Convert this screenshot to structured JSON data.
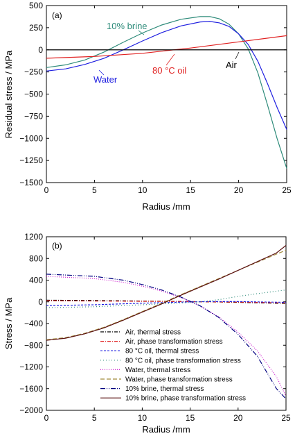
{
  "chart_data": [
    {
      "type": "line",
      "panel_label": "(a)",
      "xlabel": "Radius /mm",
      "ylabel": "Residual stress / MPa",
      "xlim": [
        0,
        25
      ],
      "ylim": [
        -1500,
        500
      ],
      "xticks": [
        "0",
        "5",
        "10",
        "15",
        "20",
        "25"
      ],
      "yticks": [
        "500",
        "250",
        "0",
        "−250",
        "−500",
        "−750",
        "−1000",
        "−1250",
        "−1500"
      ],
      "zero_line": true,
      "series": [
        {
          "name": "10% brine",
          "color": "#2e8b7a",
          "x": [
            0,
            2,
            4,
            6,
            8,
            10,
            12,
            14,
            16,
            17,
            18,
            19,
            20,
            21,
            22,
            23,
            24,
            25
          ],
          "y": [
            -200,
            -170,
            -115,
            -25,
            85,
            190,
            280,
            345,
            375,
            375,
            350,
            290,
            180,
            10,
            -260,
            -620,
            -1000,
            -1340
          ]
        },
        {
          "name": "Water",
          "color": "#1f1fe0",
          "x": [
            0,
            2,
            4,
            6,
            8,
            10,
            12,
            14,
            16,
            17,
            18,
            19,
            20,
            21,
            22,
            23,
            24,
            25
          ],
          "y": [
            -240,
            -215,
            -165,
            -95,
            0,
            100,
            195,
            270,
            315,
            320,
            305,
            265,
            180,
            60,
            -130,
            -380,
            -650,
            -900
          ]
        },
        {
          "name": "80 °C oil",
          "color": "#e02020",
          "x": [
            0,
            5,
            10,
            12,
            15,
            20,
            25
          ],
          "y": [
            -95,
            -75,
            -40,
            -15,
            20,
            90,
            160
          ]
        },
        {
          "name": "Air",
          "color": "#000000",
          "x": [
            0,
            25
          ],
          "y": [
            0,
            0
          ]
        }
      ],
      "annotations": [
        {
          "text": "10% brine",
          "color": "#2e8b7a"
        },
        {
          "text": "Water",
          "color": "#1f1fe0"
        },
        {
          "text": "80 °C oil",
          "color": "#e02020"
        },
        {
          "text": "Air",
          "color": "#000000"
        }
      ]
    },
    {
      "type": "line",
      "panel_label": "(b)",
      "xlabel": "Radius /mm",
      "ylabel": "Stress / MPa",
      "xlim": [
        0,
        25
      ],
      "ylim": [
        -2000,
        1200
      ],
      "xticks": [
        "0",
        "5",
        "10",
        "15",
        "20",
        "25"
      ],
      "yticks": [
        "1200",
        "800",
        "400",
        "0",
        "−400",
        "−800",
        "−1200",
        "−1600",
        "−2000"
      ],
      "legend_position": "bottom-right",
      "series": [
        {
          "name": "Air, thermal stress",
          "color": "#000000",
          "dash": "5,2,1,2",
          "x": [
            0,
            5,
            10,
            15,
            17,
            20,
            25
          ],
          "y": [
            30,
            25,
            15,
            5,
            0,
            -10,
            -30
          ]
        },
        {
          "name": "Air, phase transformation stress",
          "color": "#e02020",
          "dash": "5,2,1,2",
          "x": [
            0,
            5,
            10,
            15,
            17,
            20,
            25
          ],
          "y": [
            20,
            15,
            10,
            3,
            0,
            -5,
            -20
          ]
        },
        {
          "name": "80 °C oil, thermal stress",
          "color": "#1f1fe0",
          "dash": "3,2",
          "x": [
            0,
            5,
            10,
            15,
            17,
            20,
            25
          ],
          "y": [
            -70,
            -55,
            -25,
            0,
            5,
            5,
            -10
          ]
        },
        {
          "name": "80 °C oil, phase transformation stress",
          "color": "#2e8b7a",
          "dash": "1,3",
          "x": [
            0,
            5,
            10,
            14,
            16,
            18,
            20,
            22,
            25
          ],
          "y": [
            -110,
            -90,
            -55,
            -20,
            0,
            40,
            100,
            150,
            220
          ]
        },
        {
          "name": "Water, thermal stress",
          "color": "#d020d0",
          "dash": "1,2",
          "x": [
            0,
            5,
            8,
            10,
            12,
            14,
            16,
            18,
            20,
            22,
            24,
            25
          ],
          "y": [
            470,
            430,
            360,
            290,
            200,
            80,
            -70,
            -280,
            -560,
            -900,
            -1380,
            -1740
          ]
        },
        {
          "name": "Water, phase transformation stress",
          "color": "#a08a3a",
          "dash": "6,3",
          "x": [
            0,
            2,
            4,
            6,
            8,
            10,
            12,
            14,
            16,
            18,
            20,
            22,
            24,
            25
          ],
          "y": [
            -700,
            -660,
            -580,
            -470,
            -330,
            -180,
            -30,
            130,
            280,
            430,
            580,
            730,
            880,
            950
          ]
        },
        {
          "name": "10% brine, thermal stress",
          "color": "#000080",
          "dash": "7,2,1,2,1,2",
          "x": [
            0,
            5,
            8,
            10,
            12,
            14,
            16,
            18,
            20,
            22,
            23,
            24,
            25
          ],
          "y": [
            510,
            470,
            400,
            320,
            220,
            90,
            -70,
            -290,
            -600,
            -1000,
            -1300,
            -1600,
            -1790
          ]
        },
        {
          "name": "10% brine, phase transformation stress",
          "color": "#5a1010",
          "dash": "",
          "x": [
            0,
            2,
            4,
            6,
            8,
            10,
            12,
            14,
            16,
            18,
            20,
            22,
            24,
            25
          ],
          "y": [
            -710,
            -670,
            -590,
            -480,
            -340,
            -190,
            -40,
            120,
            270,
            420,
            580,
            740,
            900,
            1040
          ]
        }
      ]
    }
  ]
}
